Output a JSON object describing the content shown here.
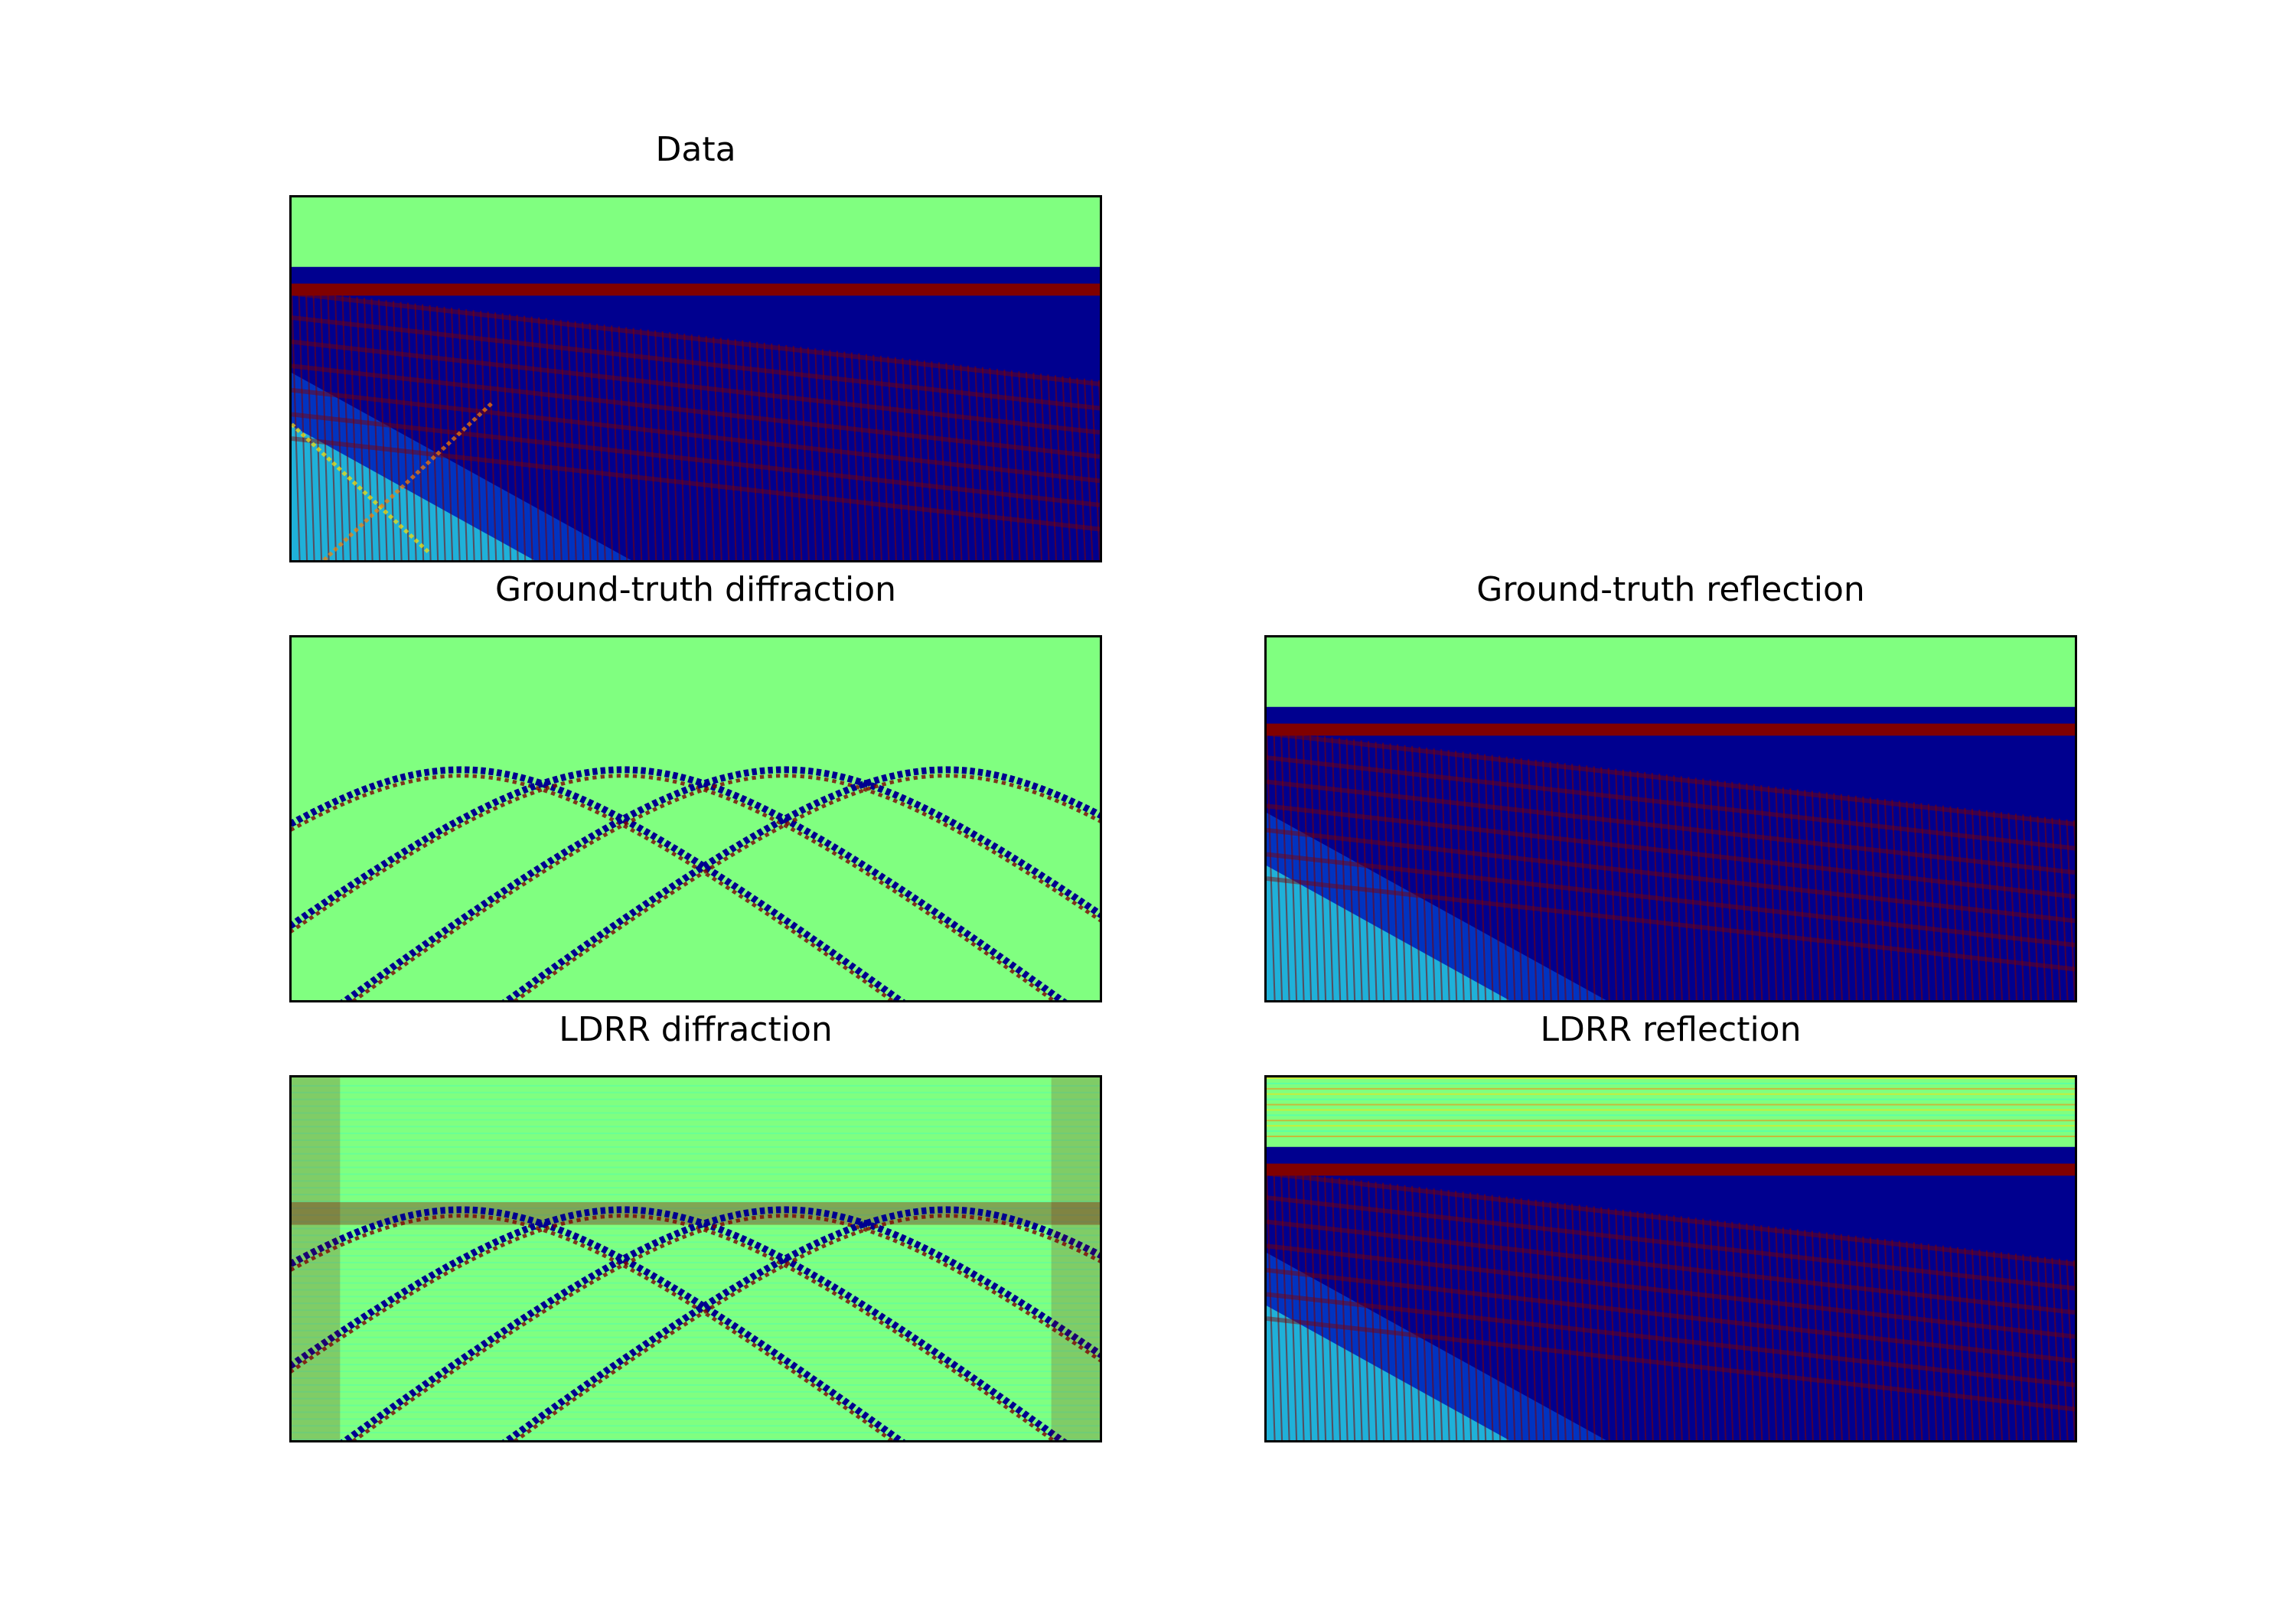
{
  "figure": {
    "colormap": "jet",
    "colors": {
      "background": "#80ff80",
      "dark_blue": "#00008f",
      "dark_red": "#800000",
      "cyan": "#40ffbf",
      "light_blue": "#0070ff",
      "yellow": "#ffe000",
      "orange": "#ff8000"
    }
  },
  "chart_data": [
    {
      "type": "heatmap",
      "title": "Data",
      "content": "reflections plus diffractions",
      "axes_ticks": "hidden"
    },
    {
      "type": "heatmap",
      "title": "Ground-truth diffraction",
      "content": "diffraction hyperbolas",
      "diffraction_apexes": 4,
      "axes_ticks": "hidden"
    },
    {
      "type": "heatmap",
      "title": "Ground-truth reflection",
      "content": "flat reflection events",
      "axes_ticks": "hidden"
    },
    {
      "type": "heatmap",
      "title": "LDRR diffraction",
      "content": "separated diffractions with residual noise",
      "diffraction_apexes": 4,
      "axes_ticks": "hidden"
    },
    {
      "type": "heatmap",
      "title": "LDRR reflection",
      "content": "separated reflections with residual noise",
      "axes_ticks": "hidden"
    }
  ]
}
